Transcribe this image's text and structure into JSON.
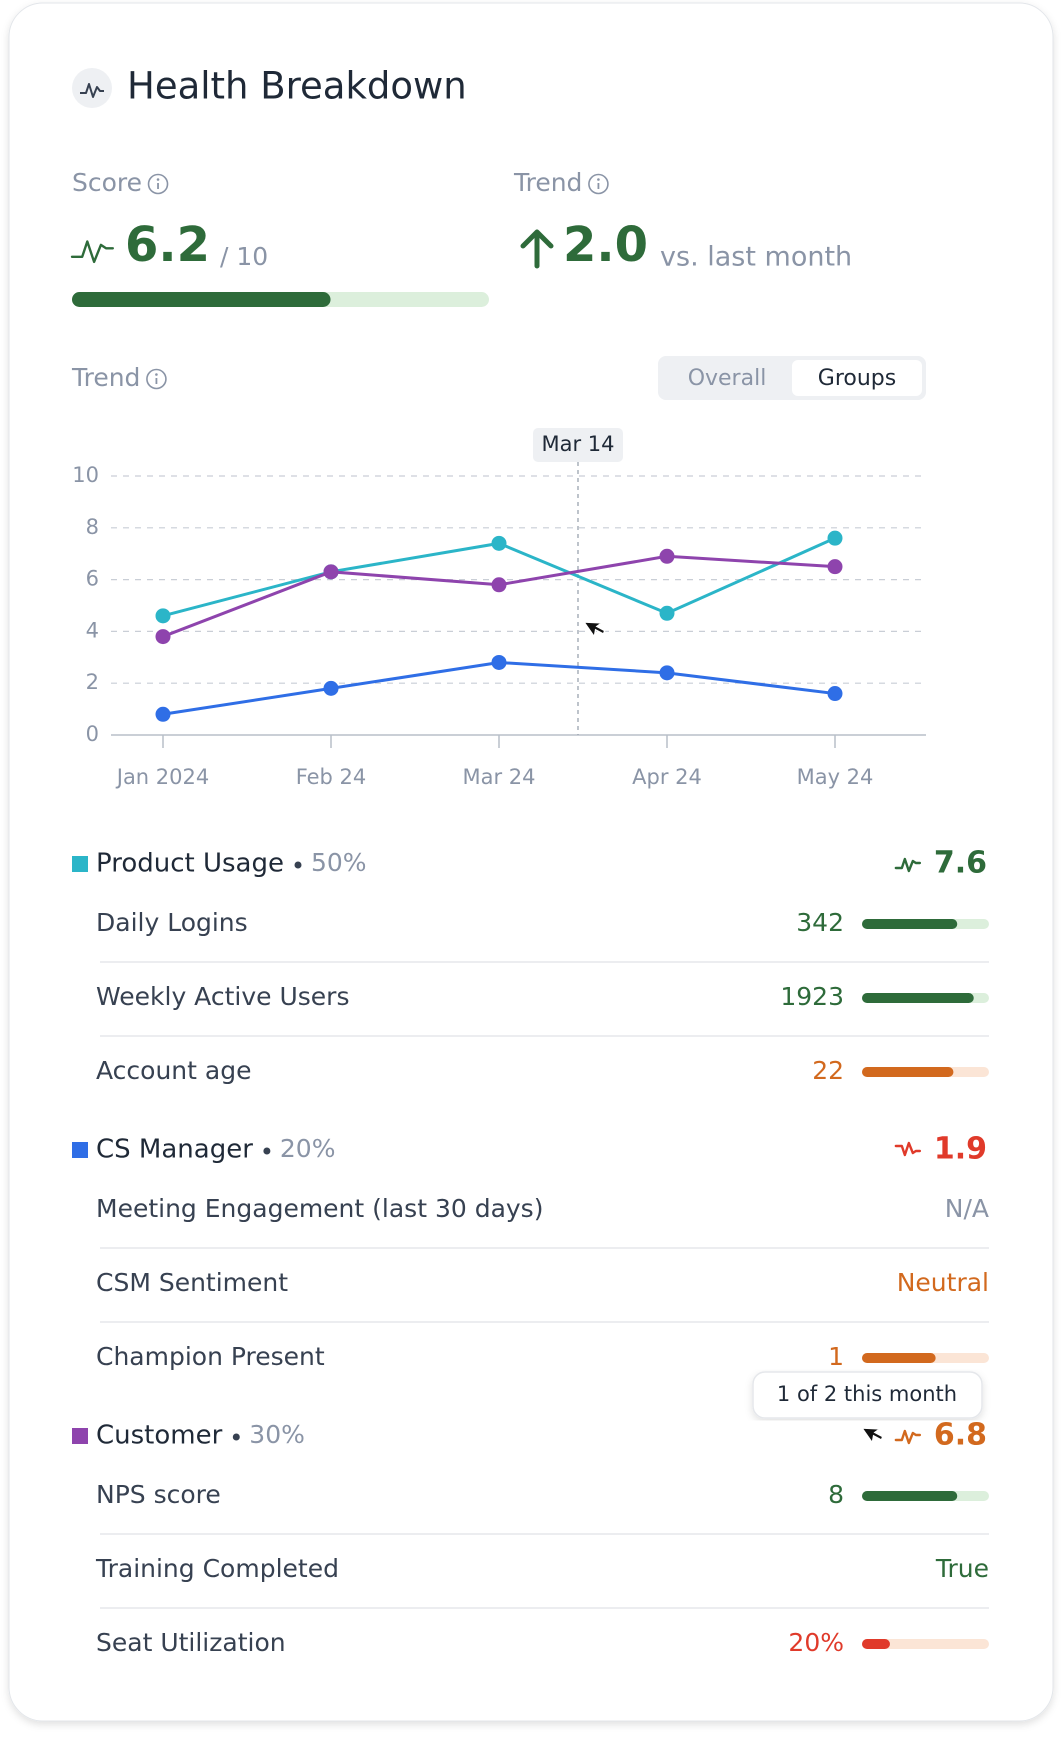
{
  "header": {
    "title": "Health Breakdown"
  },
  "score": {
    "label": "Score",
    "value": 6.2,
    "max": 10,
    "max_label": "/ 10"
  },
  "trend": {
    "label": "Trend",
    "value": 2.0,
    "value_label": "2.0",
    "suffix": "vs. last month"
  },
  "controls": {
    "options": [
      "Overall",
      "Groups"
    ],
    "active": 1
  },
  "chart_data": {
    "type": "line",
    "title": "Trend",
    "categories": [
      "Jan 2024",
      "Feb 24",
      "Mar 24",
      "Apr 24",
      "May 24"
    ],
    "ylim": [
      0,
      10
    ],
    "yticks": [
      0,
      2,
      4,
      6,
      8,
      10
    ],
    "grid": true,
    "hover_label": "Mar 14",
    "series": [
      {
        "name": "Product Usage",
        "color": "#2bb5c8",
        "values": [
          4.6,
          6.3,
          7.4,
          4.7,
          7.6
        ]
      },
      {
        "name": "CS Manager",
        "color": "#2f6ee6",
        "values": [
          0.8,
          1.8,
          2.8,
          2.4,
          1.6
        ]
      },
      {
        "name": "Customer",
        "color": "#8e44ad",
        "values": [
          3.8,
          6.3,
          5.8,
          6.9,
          6.5
        ]
      }
    ]
  },
  "groups": [
    {
      "weight": "50%",
      "score": 7.6,
      "tone": "good",
      "metrics": [
        {
          "name": "Daily Logins",
          "value": 342,
          "tone": "good",
          "bar": 75
        },
        {
          "name": "Weekly Active Users",
          "value": 1923,
          "tone": "good",
          "bar": 88
        },
        {
          "name": "Account age",
          "value": 22,
          "tone": "warn",
          "bar": 72
        }
      ]
    },
    {
      "weight": "20%",
      "score": 1.9,
      "tone": "bad",
      "metrics": [
        {
          "name": "Meeting Engagement (last 30 days)",
          "value": "N/A",
          "tone": "none"
        },
        {
          "name": "CSM Sentiment",
          "value": "Neutral",
          "tone": "warn"
        },
        {
          "name": "Champion Present",
          "value": 1,
          "tone": "warn",
          "bar": 58
        }
      ]
    },
    {
      "weight": "30%",
      "score": 6.8,
      "tone": "warn",
      "metrics": [
        {
          "name": "NPS score",
          "value": 8,
          "tone": "good",
          "bar": 75
        },
        {
          "name": "Training Completed",
          "value": "True",
          "tone": "good"
        },
        {
          "name": "Seat Utilization",
          "value": 20,
          "value_label": "20%",
          "tone": "bad",
          "bar": 22
        }
      ]
    }
  ],
  "tooltip": {
    "text": "1 of 2 this month"
  }
}
